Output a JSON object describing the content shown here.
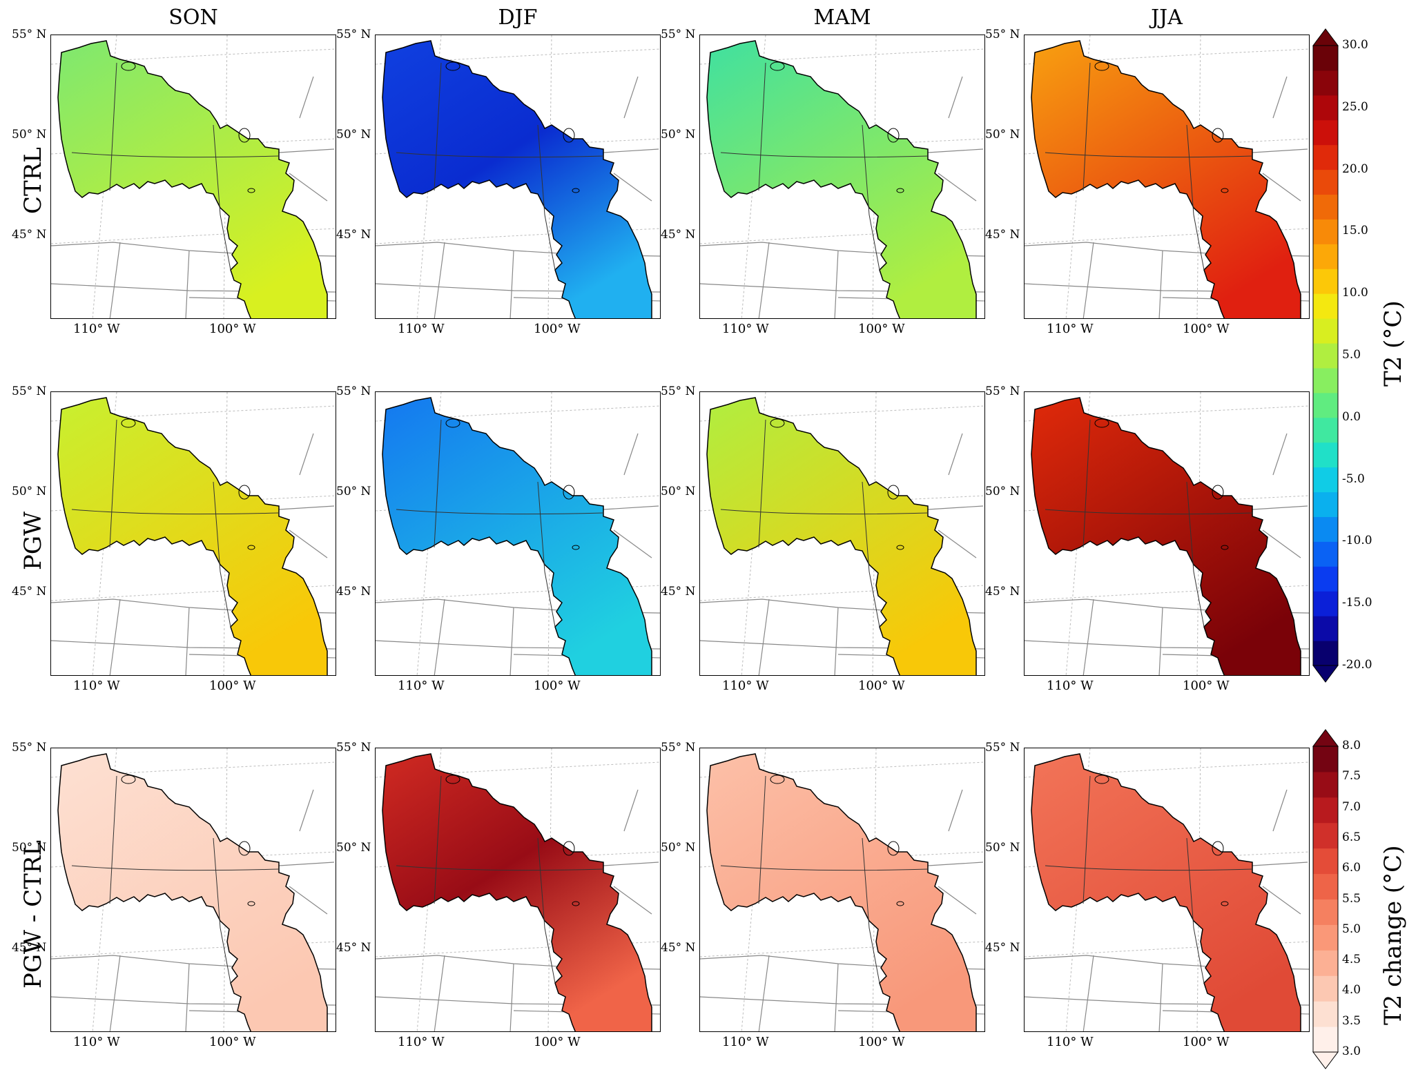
{
  "columns": [
    "SON",
    "DJF",
    "MAM",
    "JJA"
  ],
  "rows": [
    "CTRL",
    "PGW",
    "PGW - CTRL"
  ],
  "lat_labels": [
    "55° N",
    "50° N",
    "45° N"
  ],
  "lon_labels": [
    "110° W",
    "100° W"
  ],
  "colorbar_t2": {
    "title": "T2 (°C)",
    "ticks": [
      "30.0",
      "25.0",
      "20.0",
      "15.0",
      "10.0",
      "5.0",
      "0.0",
      "-5.0",
      "-10.0",
      "-15.0",
      "-20.0"
    ],
    "range": [
      -20,
      30
    ],
    "colors": [
      "#08006e",
      "#0b0aa8",
      "#0b20d8",
      "#0a3cf0",
      "#0a62f4",
      "#0a8af2",
      "#0ab0ee",
      "#10cce6",
      "#20e0c8",
      "#40e8a0",
      "#60ec80",
      "#88ee60",
      "#b0ee40",
      "#d8ee20",
      "#f4e810",
      "#fcc808",
      "#fca808",
      "#f88a08",
      "#f06a08",
      "#ea4a0a",
      "#e02a0a",
      "#cc100a",
      "#ae060a",
      "#8a040a",
      "#6a0208"
    ]
  },
  "colorbar_change": {
    "title": "T2 change (°C)",
    "ticks": [
      "8.0",
      "7.5",
      "7.0",
      "6.5",
      "6.0",
      "5.5",
      "5.0",
      "4.5",
      "4.0",
      "3.5",
      "3.0"
    ],
    "range": [
      3,
      8
    ],
    "colors": [
      "#fff0ea",
      "#fde0d2",
      "#fcc8b2",
      "#fcb094",
      "#fa9878",
      "#f58060",
      "#ee6448",
      "#e44c38",
      "#d0302a",
      "#b81a1e",
      "#980c16",
      "#740412"
    ]
  },
  "panels": [
    {
      "row": "CTRL",
      "col": "SON",
      "fill": [
        "#7ee870",
        "#d8f020"
      ],
      "colorbar": "t2"
    },
    {
      "row": "CTRL",
      "col": "DJF",
      "fill": [
        "#1040e0",
        "#0a2cd0",
        "#20b0f0"
      ],
      "colorbar": "t2"
    },
    {
      "row": "CTRL",
      "col": "MAM",
      "fill": [
        "#40e0a0",
        "#b0ee40"
      ],
      "colorbar": "t2"
    },
    {
      "row": "CTRL",
      "col": "JJA",
      "fill": [
        "#f8a010",
        "#e02010"
      ],
      "colorbar": "t2"
    },
    {
      "row": "PGW",
      "col": "SON",
      "fill": [
        "#c8f030",
        "#f8c808"
      ],
      "colorbar": "t2"
    },
    {
      "row": "PGW",
      "col": "DJF",
      "fill": [
        "#1478f0",
        "#20d0e0"
      ],
      "colorbar": "t2"
    },
    {
      "row": "PGW",
      "col": "MAM",
      "fill": [
        "#b0ee40",
        "#f8c808"
      ],
      "colorbar": "t2"
    },
    {
      "row": "PGW",
      "col": "JJA",
      "fill": [
        "#e02a0a",
        "#7a0208"
      ],
      "colorbar": "t2"
    },
    {
      "row": "PGW - CTRL",
      "col": "SON",
      "fill": [
        "#fde0d2",
        "#fcc8b2"
      ],
      "colorbar": "change"
    },
    {
      "row": "PGW - CTRL",
      "col": "DJF",
      "fill": [
        "#d02a22",
        "#980c16",
        "#f06448"
      ],
      "colorbar": "change"
    },
    {
      "row": "PGW - CTRL",
      "col": "MAM",
      "fill": [
        "#fcc0a8",
        "#f8987a"
      ],
      "colorbar": "change"
    },
    {
      "row": "PGW - CTRL",
      "col": "JJA",
      "fill": [
        "#f27458",
        "#e04a36"
      ],
      "colorbar": "change"
    }
  ]
}
